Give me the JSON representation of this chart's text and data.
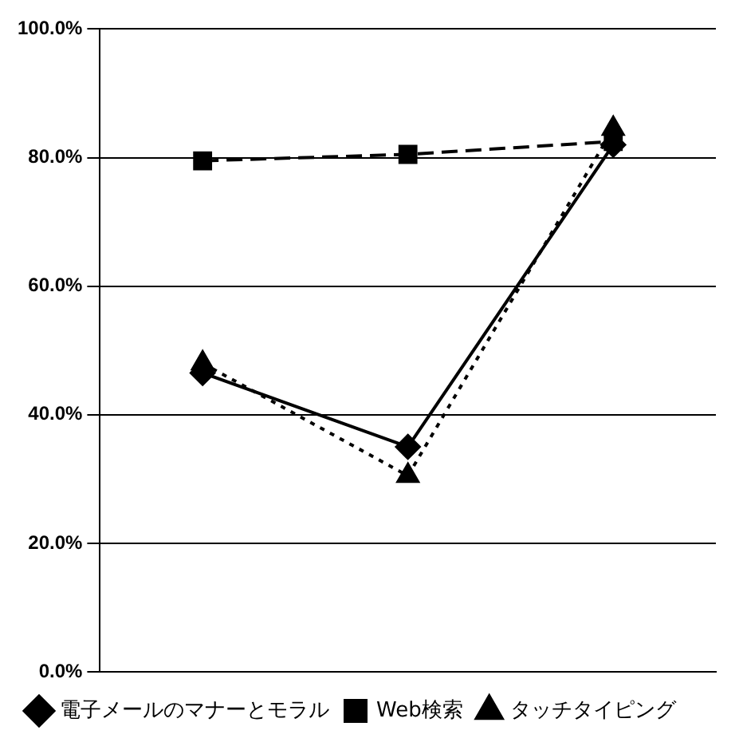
{
  "chart_data": {
    "type": "line",
    "categories": [
      null,
      null,
      null
    ],
    "ylim": [
      0,
      100
    ],
    "yticks": [
      {
        "value": 0,
        "label": "0.0%"
      },
      {
        "value": 20,
        "label": "20.0%"
      },
      {
        "value": 40,
        "label": "40.0%"
      },
      {
        "value": 60,
        "label": "60.0%"
      },
      {
        "value": 80,
        "label": "80.0%"
      },
      {
        "value": 100,
        "label": "100.0%"
      }
    ],
    "grid": "y",
    "legend": "bottom",
    "series": [
      {
        "name": "電子メールのマナーとモラル",
        "color": "#000000",
        "values": [
          46.5,
          35,
          82
        ],
        "marker": "diamond",
        "line_style": "solid"
      },
      {
        "name": "Web検索",
        "color": "#000000",
        "values": [
          79.5,
          80.5,
          82.5
        ],
        "marker": "square",
        "line_style": "dashed"
      },
      {
        "name": "タッチタイピング",
        "color": "#000000",
        "values": [
          48,
          30.5,
          84.5
        ],
        "marker": "triangle",
        "line_style": "dotted"
      }
    ]
  }
}
